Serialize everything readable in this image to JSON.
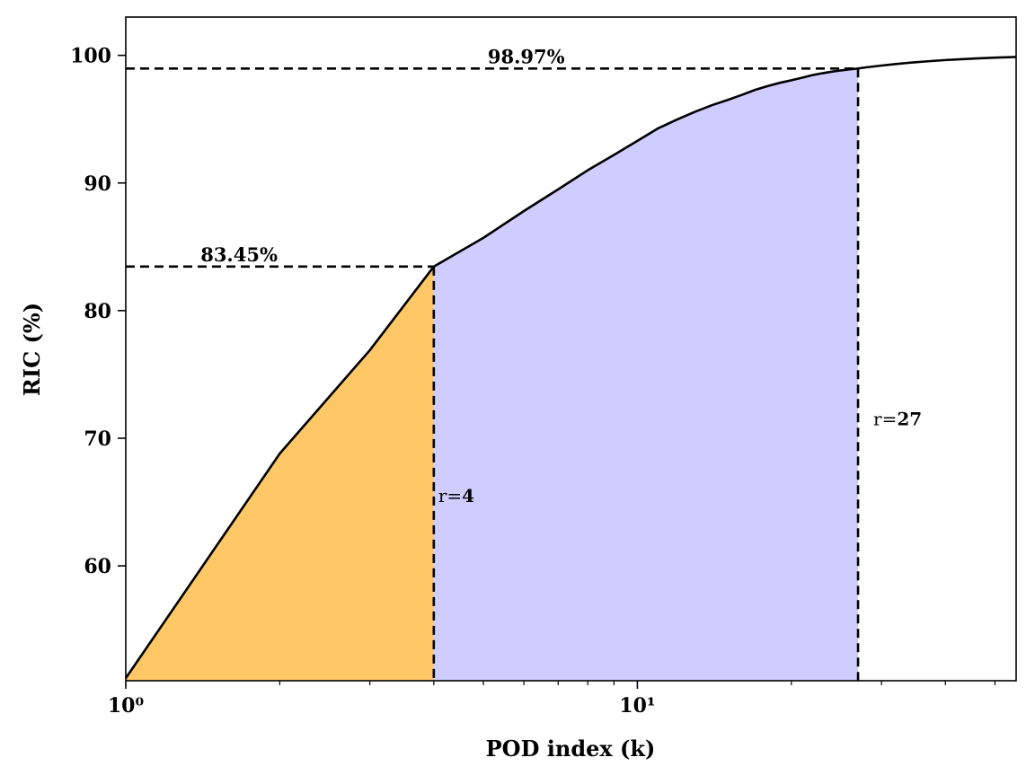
{
  "chart_data": {
    "type": "line",
    "xscale": "log",
    "xlim": [
      1,
      55
    ],
    "ylim": [
      51,
      103
    ],
    "xlabel": "POD index (k)",
    "ylabel": "RIC (%)",
    "x_ticks": [
      1,
      10
    ],
    "x_tick_labels": [
      "10⁰",
      "10¹"
    ],
    "y_ticks": [
      60,
      70,
      80,
      90,
      100
    ],
    "grid": false,
    "series": [
      {
        "x": [
          1,
          2,
          3,
          4,
          5,
          6,
          7,
          8,
          9,
          10,
          11,
          12,
          13,
          14,
          15,
          16,
          17,
          18,
          19,
          20,
          21,
          22,
          23,
          24,
          25,
          26,
          27,
          28,
          29,
          30,
          32,
          34,
          36,
          38,
          40,
          43,
          46,
          50,
          55
        ],
        "y": [
          51.2,
          68.8,
          76.9,
          83.45,
          85.7,
          87.8,
          89.5,
          91.0,
          92.2,
          93.3,
          94.3,
          95.0,
          95.6,
          96.1,
          96.5,
          96.9,
          97.3,
          97.6,
          97.85,
          98.05,
          98.25,
          98.45,
          98.6,
          98.72,
          98.82,
          98.9,
          98.97,
          99.06,
          99.13,
          99.2,
          99.32,
          99.42,
          99.5,
          99.57,
          99.63,
          99.7,
          99.76,
          99.82,
          99.87
        ],
        "color": "#000000"
      }
    ],
    "regions": [
      {
        "from": 1,
        "to": 4,
        "color": "#ffc766"
      },
      {
        "from": 4,
        "to": 27,
        "color": "#cfcdff"
      }
    ],
    "annotations": [
      {
        "label": "83.45%",
        "x": 4,
        "y": 83.45,
        "label_x": 1.4
      },
      {
        "label": "98.97%",
        "x": 27,
        "y": 98.97,
        "label_x": 5.1
      }
    ],
    "vlines": [
      {
        "x": 4,
        "label_prefix": "r=",
        "label_value": "4",
        "label_y": 65.5
      },
      {
        "x": 27,
        "label_prefix": "r=",
        "label_value": "27",
        "label_y": 71.5
      }
    ]
  }
}
